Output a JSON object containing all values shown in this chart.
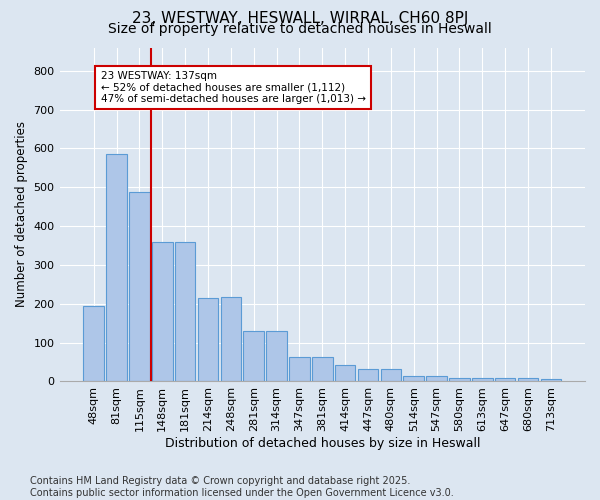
{
  "title": "23, WESTWAY, HESWALL, WIRRAL, CH60 8PJ",
  "subtitle": "Size of property relative to detached houses in Heswall",
  "xlabel": "Distribution of detached houses by size in Heswall",
  "ylabel": "Number of detached properties",
  "categories": [
    "48sqm",
    "81sqm",
    "115sqm",
    "148sqm",
    "181sqm",
    "214sqm",
    "248sqm",
    "281sqm",
    "314sqm",
    "347sqm",
    "381sqm",
    "414sqm",
    "447sqm",
    "480sqm",
    "514sqm",
    "547sqm",
    "580sqm",
    "613sqm",
    "647sqm",
    "680sqm",
    "713sqm"
  ],
  "values": [
    194,
    585,
    488,
    358,
    360,
    216,
    217,
    131,
    131,
    64,
    64,
    43,
    32,
    32,
    15,
    15,
    10,
    10,
    9,
    9,
    7
  ],
  "bar_color": "#aec6e8",
  "bar_edge_color": "#5b9bd5",
  "vline_color": "#cc0000",
  "vline_index": 2.5,
  "annotation_text": "23 WESTWAY: 137sqm\n← 52% of detached houses are smaller (1,112)\n47% of semi-detached houses are larger (1,013) →",
  "annotation_box_color": "#ffffff",
  "annotation_box_edge_color": "#cc0000",
  "ylim": [
    0,
    860
  ],
  "yticks": [
    0,
    100,
    200,
    300,
    400,
    500,
    600,
    700,
    800
  ],
  "background_color": "#dce6f1",
  "plot_bg_color": "#dce6f1",
  "footer_text": "Contains HM Land Registry data © Crown copyright and database right 2025.\nContains public sector information licensed under the Open Government Licence v3.0.",
  "title_fontsize": 11,
  "subtitle_fontsize": 10,
  "xlabel_fontsize": 9,
  "ylabel_fontsize": 8.5,
  "tick_fontsize": 8,
  "footer_fontsize": 7
}
